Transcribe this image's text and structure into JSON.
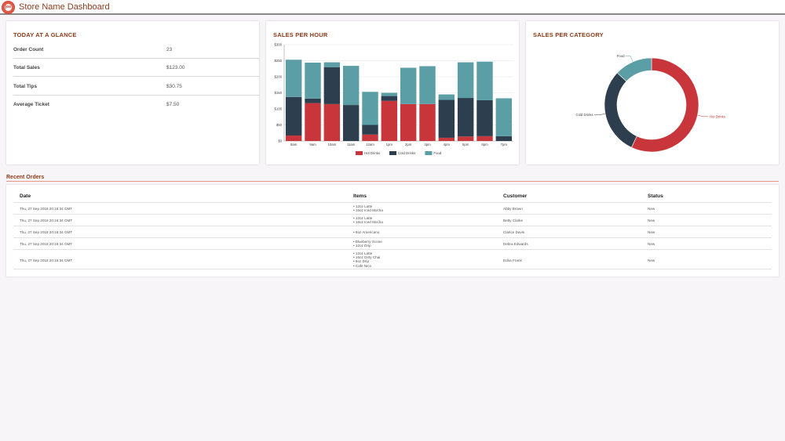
{
  "app": {
    "title": "Store Name Dashboard",
    "logo_text": "joe"
  },
  "glance": {
    "title": "TODAY AT A GLANCE",
    "rows": [
      {
        "label": "Order Count",
        "value": "23"
      },
      {
        "label": "Total Sales",
        "value": "$123.00"
      },
      {
        "label": "Total Tips",
        "value": "$30.75"
      },
      {
        "label": "Average Ticket",
        "value": "$7.50"
      }
    ]
  },
  "sales_per_hour": {
    "title": "SALES PER HOUR"
  },
  "sales_per_category": {
    "title": "SALES PER CATEGORY"
  },
  "colors": {
    "hot": "#c8353a",
    "cold": "#2d3e4e",
    "food": "#5b9ea6",
    "accent": "#8b3a18"
  },
  "chart_data": [
    {
      "type": "bar",
      "stacked": true,
      "categories": [
        "8am",
        "9am",
        "10am",
        "11am",
        "12am",
        "1pm",
        "2pm",
        "3pm",
        "4pm",
        "5pm",
        "6pm",
        "7pm"
      ],
      "series": [
        {
          "name": "Hot Drinks",
          "values": [
            17,
            118,
            115,
            0,
            20,
            125,
            115,
            115,
            10,
            14,
            15,
            0
          ]
        },
        {
          "name": "Cold Drinks",
          "values": [
            120,
            14,
            115,
            112,
            30,
            15,
            0,
            0,
            118,
            120,
            112,
            15
          ]
        },
        {
          "name": "Food",
          "values": [
            116,
            112,
            15,
            122,
            103,
            10,
            113,
            118,
            17,
            111,
            120,
            118
          ]
        }
      ],
      "yticks": [
        "$0",
        "$50",
        "$100",
        "$150",
        "$200",
        "$250",
        "$300"
      ],
      "ylim": [
        0,
        300
      ],
      "legend": "bottom",
      "grid": true
    },
    {
      "type": "pie",
      "donut": true,
      "labels": [
        "Hot Drinks",
        "Cold Drinks",
        "Food"
      ],
      "values": [
        57,
        30,
        13
      ]
    }
  ],
  "orders": {
    "title": "Recent Orders",
    "headers": {
      "date": "Date",
      "items": "Items",
      "customer": "Customer",
      "status": "Status"
    },
    "rows": [
      {
        "date": "Thu, 27 Sep 2018 20:16:34 GMT",
        "items": [
          "12oz Latte",
          "16oz Iced Mocha"
        ],
        "customer": "Abby Brown",
        "status": "New"
      },
      {
        "date": "Thu, 27 Sep 2018 20:16:34 GMT",
        "items": [
          "12oz Latte",
          "16oz Iced Mocha"
        ],
        "customer": "Betty Clarke",
        "status": "New"
      },
      {
        "date": "Thu, 27 Sep 2018 20:16:34 GMT",
        "items": [
          "8oz Americano"
        ],
        "customer": "Clarice Davis",
        "status": "New"
      },
      {
        "date": "Thu, 27 Sep 2018 20:16:34 GMT",
        "items": [
          "Blueberry Scone",
          "12oz Drip"
        ],
        "customer": "Debra Edwards",
        "status": "New"
      },
      {
        "date": "Thu, 27 Sep 2018 20:16:34 GMT",
        "items": [
          "12oz Latte",
          "16oz Dirty Chai",
          "8oz Drip",
          "Cafe Nico"
        ],
        "customer": "Edna Frank",
        "status": "New"
      }
    ]
  }
}
